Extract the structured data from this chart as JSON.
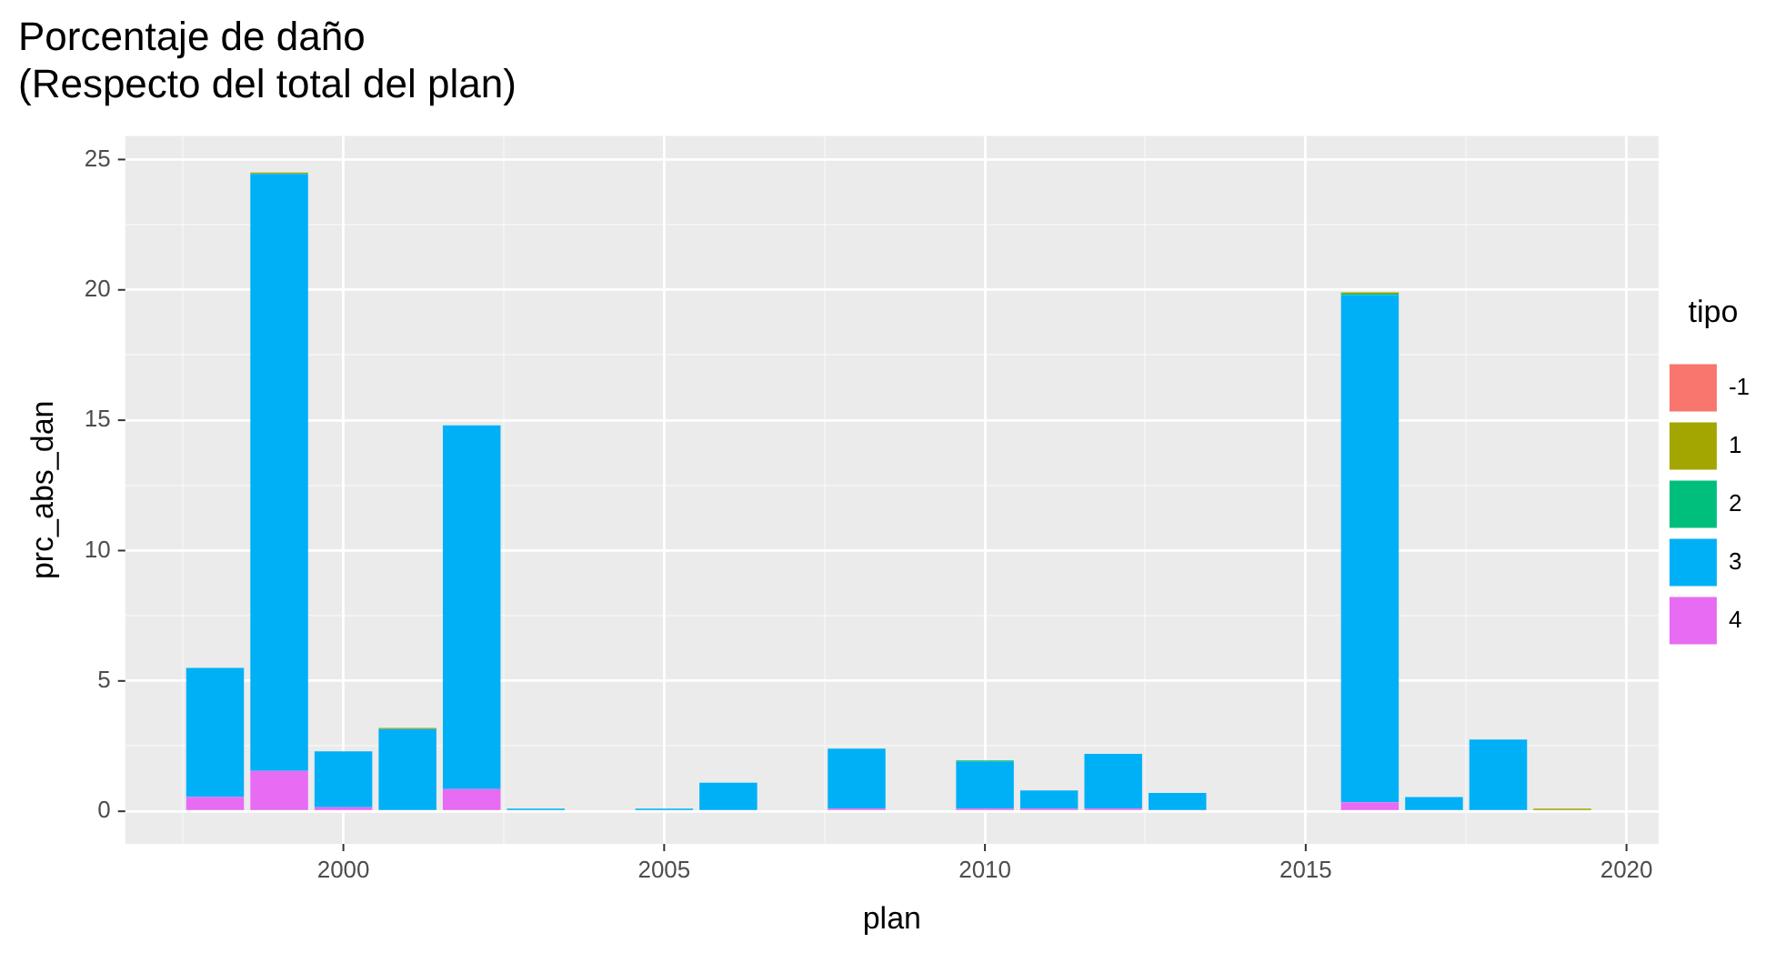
{
  "chart_data": {
    "type": "bar",
    "title": "Porcentaje de daño",
    "subtitle": "(Respecto del total del plan)",
    "xlabel": "plan",
    "ylabel": "prc_abs_dan",
    "legend_title": "tipo",
    "stacked": true,
    "legend": "right",
    "grid": true,
    "x": [
      1998,
      1999,
      2000,
      2001,
      2002,
      2003,
      2005,
      2006,
      2008,
      2010,
      2011,
      2012,
      2013,
      2016,
      2017,
      2018,
      2019
    ],
    "series": [
      {
        "name": "4",
        "color": "#e76bf3",
        "values": [
          0.55,
          1.55,
          0.15,
          null,
          0.85,
          null,
          null,
          null,
          0.1,
          0.1,
          0.1,
          0.1,
          null,
          0.35,
          null,
          null,
          null
        ]
      },
      {
        "name": "3",
        "color": "#00b0f6",
        "values": [
          4.95,
          22.9,
          2.15,
          3.15,
          13.95,
          0.1,
          0.1,
          1.1,
          2.3,
          1.8,
          0.7,
          2.1,
          0.7,
          19.45,
          0.55,
          2.75,
          null
        ]
      },
      {
        "name": "2",
        "color": "#00bf7d",
        "values": [
          null,
          null,
          null,
          null,
          null,
          null,
          null,
          null,
          null,
          0.05,
          null,
          null,
          null,
          0.05,
          null,
          null,
          null
        ]
      },
      {
        "name": "1",
        "color": "#a3a500",
        "values": [
          null,
          0.05,
          null,
          0.05,
          null,
          null,
          null,
          null,
          null,
          null,
          null,
          null,
          null,
          0.05,
          null,
          null,
          0.1
        ]
      },
      {
        "name": "-1",
        "color": "#f8766d",
        "values": [
          null,
          null,
          null,
          null,
          null,
          null,
          null,
          null,
          null,
          null,
          null,
          null,
          null,
          null,
          null,
          null,
          null
        ]
      }
    ],
    "xlim": [
      1996.6,
      2020.5
    ],
    "xticks": [
      {
        "value": 1997.5,
        "label": null
      },
      2000,
      {
        "value": 2002.5,
        "label": null
      },
      2005,
      {
        "value": 2007.5,
        "label": null
      },
      2010,
      {
        "value": 2012.5,
        "label": null
      },
      2015,
      {
        "value": 2017.5,
        "label": null
      },
      2020
    ],
    "ylim": [
      -1.25,
      25.9
    ],
    "yticks": [
      0,
      {
        "value": 2.5,
        "label": null
      },
      5,
      {
        "value": 7.5,
        "label": null
      },
      10,
      {
        "value": 12.5,
        "label": null
      },
      15,
      {
        "value": 17.5,
        "label": null
      },
      20,
      {
        "value": 22.5,
        "label": null
      },
      25
    ]
  }
}
